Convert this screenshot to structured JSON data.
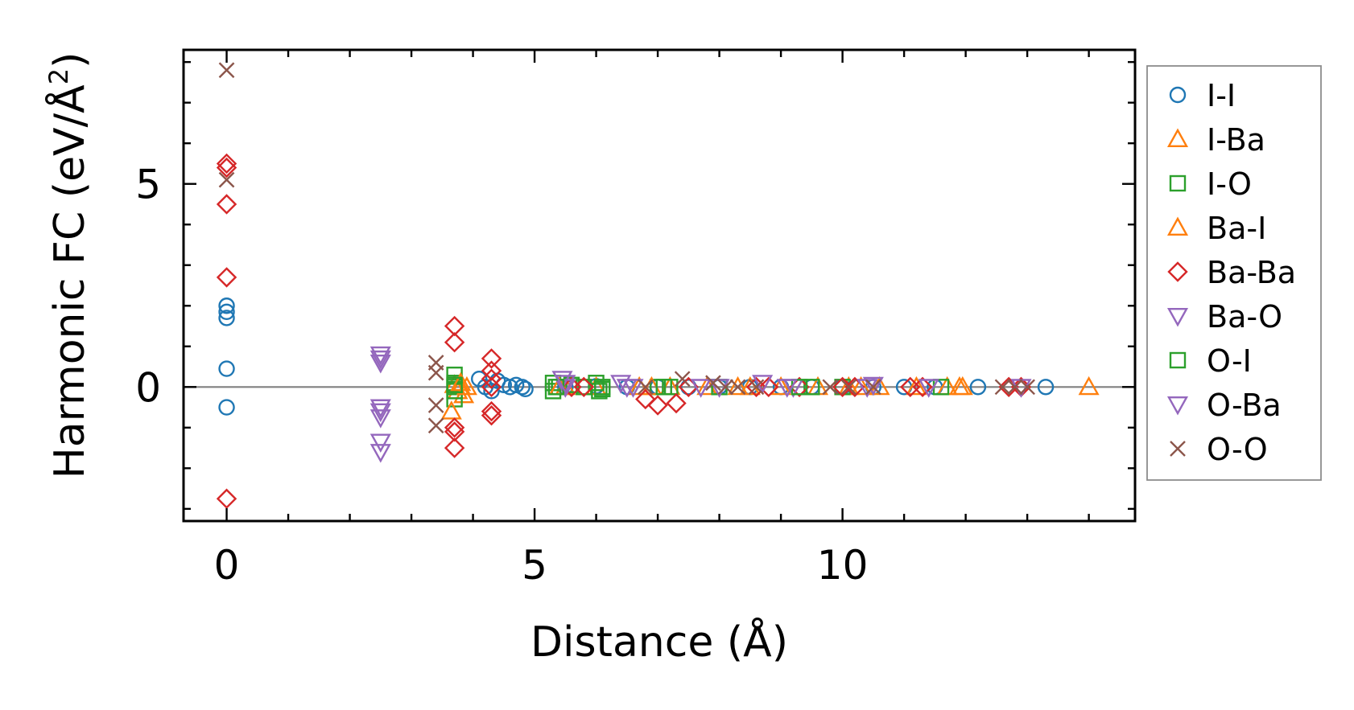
{
  "chart_data": {
    "type": "scatter",
    "title": "",
    "xlabel": "Distance (Å)",
    "ylabel_prefix": "Harmonic FC (eV/Å",
    "ylabel_sup": "2",
    "ylabel_suffix": ")",
    "xlim": [
      -0.7,
      14.75
    ],
    "ylim": [
      -3.3,
      8.3
    ],
    "xticks": [
      0,
      5,
      10
    ],
    "yticks": [
      0,
      5
    ],
    "xminor_step": 1,
    "yminor_step": 1,
    "zero_line": true,
    "grid": false,
    "legend_position": "outside-right",
    "series": [
      {
        "name": "I-I",
        "marker": "circle",
        "color": "#1f77b4",
        "points": [
          [
            0,
            2.0
          ],
          [
            0,
            1.85
          ],
          [
            0,
            1.7
          ],
          [
            0,
            0.45
          ],
          [
            0,
            -0.5
          ],
          [
            4.1,
            0.2
          ],
          [
            4.2,
            0.0
          ],
          [
            4.3,
            -0.1
          ],
          [
            4.4,
            0.15
          ],
          [
            4.5,
            0.05
          ],
          [
            4.6,
            0.0
          ],
          [
            4.7,
            0.05
          ],
          [
            4.8,
            0.0
          ],
          [
            4.85,
            -0.05
          ],
          [
            5.5,
            0.0
          ],
          [
            6.0,
            0.02
          ],
          [
            6.5,
            0.0
          ],
          [
            7.0,
            0.0
          ],
          [
            7.5,
            0.0
          ],
          [
            8.0,
            0.0
          ],
          [
            8.5,
            0.0
          ],
          [
            9.0,
            0.0
          ],
          [
            9.5,
            0.0
          ],
          [
            10.0,
            0.0
          ],
          [
            10.5,
            0.0
          ],
          [
            11.0,
            0.0
          ],
          [
            11.5,
            0.0
          ],
          [
            12.2,
            0.0
          ],
          [
            13.3,
            0.0
          ]
        ]
      },
      {
        "name": "I-Ba",
        "marker": "triangle-up",
        "color": "#ff7f0e",
        "points": [
          [
            3.7,
            0.05
          ],
          [
            3.75,
            -0.1
          ],
          [
            3.8,
            0.0
          ],
          [
            3.85,
            -0.2
          ],
          [
            5.5,
            0.0
          ],
          [
            6.0,
            0.0
          ],
          [
            6.7,
            0.0
          ],
          [
            7.2,
            0.0
          ],
          [
            7.8,
            0.0
          ],
          [
            8.3,
            0.0
          ],
          [
            9.0,
            0.0
          ],
          [
            9.6,
            0.0
          ],
          [
            10.1,
            0.0
          ],
          [
            10.6,
            0.0
          ],
          [
            11.2,
            0.0
          ],
          [
            11.7,
            0.0
          ],
          [
            11.95,
            0.0
          ],
          [
            14.0,
            0.0
          ]
        ]
      },
      {
        "name": "I-O",
        "marker": "square",
        "color": "#2ca02c",
        "points": [
          [
            3.7,
            0.3
          ],
          [
            3.7,
            0.1
          ],
          [
            3.7,
            -0.1
          ],
          [
            3.7,
            -0.3
          ],
          [
            3.7,
            0.0
          ],
          [
            5.3,
            0.1
          ],
          [
            5.3,
            -0.1
          ],
          [
            5.4,
            0.0
          ],
          [
            5.6,
            0.05
          ],
          [
            5.8,
            0.0
          ],
          [
            6.0,
            0.1
          ],
          [
            6.05,
            -0.1
          ],
          [
            6.1,
            0.0
          ],
          [
            7.0,
            0.0
          ],
          [
            7.2,
            0.0
          ],
          [
            8.0,
            0.0
          ],
          [
            9.5,
            0.0
          ],
          [
            10.0,
            0.0
          ],
          [
            11.6,
            0.0
          ]
        ]
      },
      {
        "name": "Ba-I",
        "marker": "triangle-up",
        "color": "#ff7f0e",
        "points": [
          [
            3.65,
            -0.6
          ],
          [
            3.8,
            0.1
          ],
          [
            3.9,
            0.0
          ],
          [
            5.4,
            0.0
          ],
          [
            6.9,
            0.0
          ],
          [
            8.5,
            0.0
          ],
          [
            10.3,
            0.0
          ],
          [
            11.9,
            0.0
          ]
        ]
      },
      {
        "name": "Ba-Ba",
        "marker": "diamond",
        "color": "#d62728",
        "points": [
          [
            0,
            5.5
          ],
          [
            0,
            5.4
          ],
          [
            0,
            4.5
          ],
          [
            0,
            2.7
          ],
          [
            0,
            -2.75
          ],
          [
            3.7,
            1.5
          ],
          [
            3.7,
            1.1
          ],
          [
            3.7,
            -1.0
          ],
          [
            3.7,
            -1.1
          ],
          [
            3.7,
            -1.5
          ],
          [
            4.3,
            0.7
          ],
          [
            4.3,
            0.4
          ],
          [
            4.3,
            0.2
          ],
          [
            4.3,
            0.0
          ],
          [
            4.3,
            -0.6
          ],
          [
            4.3,
            -0.7
          ],
          [
            5.6,
            0.0
          ],
          [
            5.8,
            0.0
          ],
          [
            6.8,
            -0.3
          ],
          [
            7.0,
            -0.45
          ],
          [
            7.3,
            -0.4
          ],
          [
            7.5,
            0.0
          ],
          [
            8.6,
            0.0
          ],
          [
            8.8,
            0.0
          ],
          [
            9.3,
            0.0
          ],
          [
            10.0,
            0.0
          ],
          [
            10.2,
            0.0
          ],
          [
            11.1,
            0.0
          ],
          [
            11.3,
            0.0
          ],
          [
            12.7,
            0.0
          ],
          [
            12.9,
            0.0
          ]
        ]
      },
      {
        "name": "Ba-O",
        "marker": "triangle-down",
        "color": "#9467bd",
        "points": [
          [
            2.5,
            0.8
          ],
          [
            2.5,
            0.6
          ],
          [
            2.5,
            -0.5
          ],
          [
            2.5,
            -0.75
          ],
          [
            2.5,
            -1.35
          ],
          [
            2.5,
            -1.6
          ],
          [
            5.45,
            0.2
          ],
          [
            5.5,
            0.0
          ],
          [
            6.4,
            0.1
          ],
          [
            6.5,
            0.0
          ],
          [
            7.7,
            0.0
          ],
          [
            8.7,
            0.1
          ],
          [
            9.2,
            0.0
          ],
          [
            10.5,
            0.05
          ],
          [
            11.4,
            0.0
          ],
          [
            12.9,
            0.0
          ]
        ]
      },
      {
        "name": "O-I",
        "marker": "square",
        "color": "#2ca02c",
        "points": [
          [
            3.7,
            0.05
          ],
          [
            5.35,
            0.0
          ],
          [
            6.1,
            -0.05
          ],
          [
            7.1,
            0.0
          ],
          [
            9.3,
            0.0
          ]
        ]
      },
      {
        "name": "O-Ba",
        "marker": "triangle-down",
        "color": "#9467bd",
        "points": [
          [
            2.5,
            0.7
          ],
          [
            2.5,
            -0.6
          ],
          [
            5.5,
            0.1
          ],
          [
            6.6,
            0.0
          ],
          [
            8.0,
            0.0
          ],
          [
            9.1,
            0.0
          ],
          [
            10.4,
            0.0
          ]
        ]
      },
      {
        "name": "O-O",
        "marker": "x",
        "color": "#8c564b",
        "points": [
          [
            0,
            7.8
          ],
          [
            0,
            5.1
          ],
          [
            3.4,
            0.6
          ],
          [
            3.4,
            0.35
          ],
          [
            3.4,
            -0.45
          ],
          [
            3.4,
            -0.95
          ],
          [
            6.8,
            0.0
          ],
          [
            7.4,
            0.2
          ],
          [
            7.9,
            0.1
          ],
          [
            8.1,
            0.0
          ],
          [
            8.3,
            0.0
          ],
          [
            8.6,
            0.0
          ],
          [
            9.8,
            0.0
          ],
          [
            10.1,
            0.0
          ],
          [
            10.5,
            0.0
          ],
          [
            12.6,
            0.0
          ],
          [
            12.8,
            0.0
          ],
          [
            13.0,
            0.0
          ]
        ]
      }
    ]
  }
}
